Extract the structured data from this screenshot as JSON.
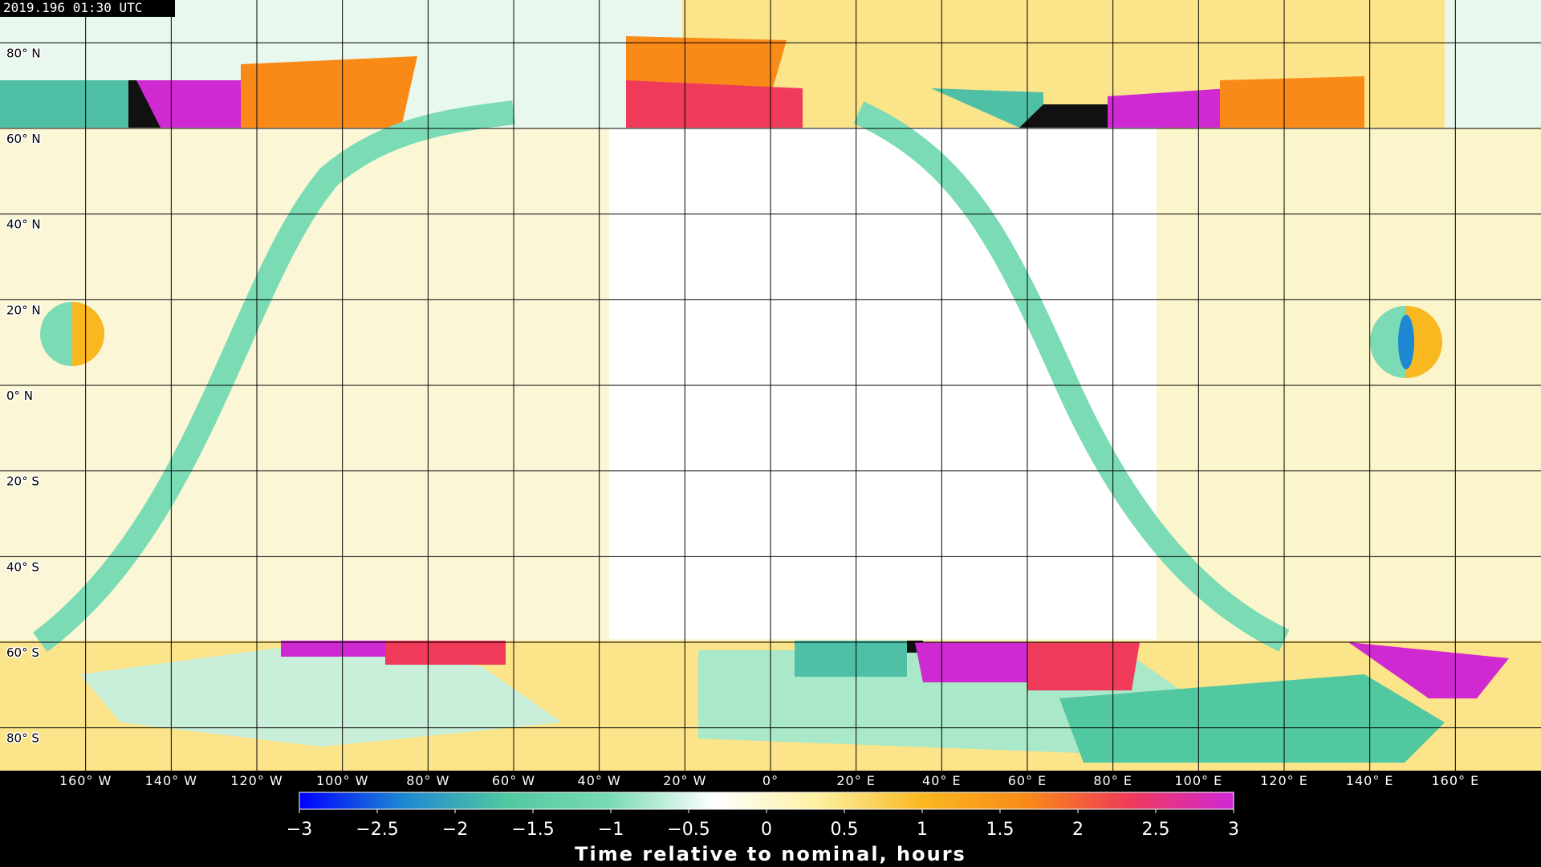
{
  "map": {
    "timestamp": "2019.196 01:30 UTC",
    "lonlim": [
      -180,
      180
    ],
    "latlim": [
      -90,
      90
    ],
    "lat_lines": [
      {
        "value": 80,
        "label": "80° N"
      },
      {
        "value": 60,
        "label": "60° N"
      },
      {
        "value": 40,
        "label": "40° N"
      },
      {
        "value": 20,
        "label": "20° N"
      },
      {
        "value": 0,
        "label": "0° N"
      },
      {
        "value": -20,
        "label": "20° S"
      },
      {
        "value": -40,
        "label": "40° S"
      },
      {
        "value": -60,
        "label": "60° S"
      },
      {
        "value": -80,
        "label": "80° S"
      }
    ],
    "lon_lines": [
      {
        "value": -160,
        "label": "160° W"
      },
      {
        "value": -140,
        "label": "140° W"
      },
      {
        "value": -120,
        "label": "120° W"
      },
      {
        "value": -100,
        "label": "100° W"
      },
      {
        "value": -80,
        "label": "80° W"
      },
      {
        "value": -60,
        "label": "60° W"
      },
      {
        "value": -40,
        "label": "40° W"
      },
      {
        "value": -20,
        "label": "20° W"
      },
      {
        "value": 0,
        "label": "0°"
      },
      {
        "value": 20,
        "label": "20° E"
      },
      {
        "value": 40,
        "label": "40° E"
      },
      {
        "value": 60,
        "label": "60° E"
      },
      {
        "value": 80,
        "label": "80° E"
      },
      {
        "value": 100,
        "label": "100° E"
      },
      {
        "value": 120,
        "label": "120° E"
      },
      {
        "value": 140,
        "label": "140° E"
      },
      {
        "value": 160,
        "label": "160° E"
      }
    ]
  },
  "colorbar": {
    "lim": [
      -3,
      3
    ],
    "colors": [
      "#0000ff",
      "#1e88d2",
      "#52c8a0",
      "#7adbb4",
      "#ffffff",
      "#fdf0a0",
      "#f9b820",
      "#f98a18",
      "#ef3a5a",
      "#d028d8"
    ],
    "ticks": [
      {
        "value": -3,
        "label": "−3"
      },
      {
        "value": -2.5,
        "label": "−2.5"
      },
      {
        "value": -2,
        "label": "−2"
      },
      {
        "value": -1.5,
        "label": "−1.5"
      },
      {
        "value": -1,
        "label": "−1"
      },
      {
        "value": -0.5,
        "label": "−0.5"
      },
      0,
      0.5,
      1,
      1.5,
      2,
      2.5,
      3
    ],
    "label": "Time relative to nominal, hours"
  }
}
